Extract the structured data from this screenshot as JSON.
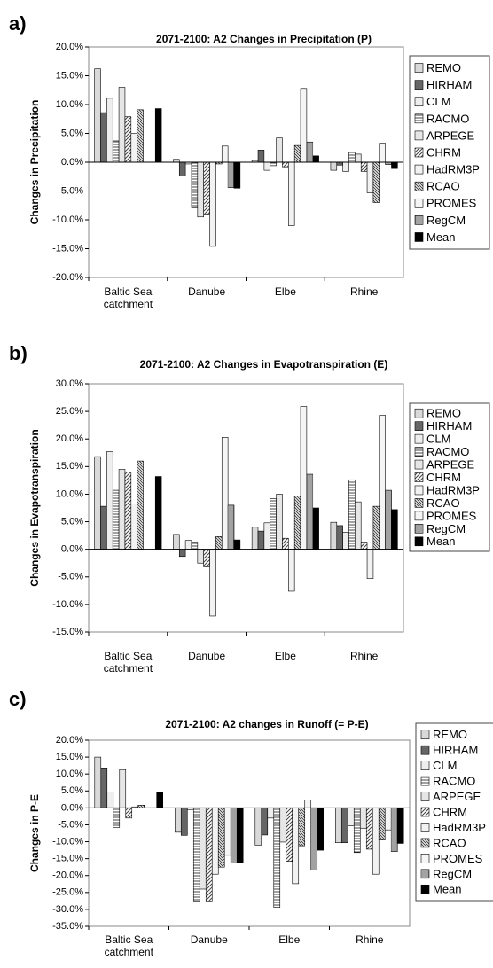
{
  "chart_data": [
    {
      "type": "bar",
      "label": "a)",
      "title": "2071-2100: A2 Changes in Precipitation (P)",
      "y_label": "Changes in Precipitation",
      "categories": [
        "Baltic Sea catchment",
        "Danube",
        "Elbe",
        "Rhine"
      ],
      "ylim": [
        -20,
        20
      ],
      "yticks": [
        {
          "value": 20,
          "label": "20.0%"
        },
        {
          "value": 15,
          "label": "15.0%"
        },
        {
          "value": 10,
          "label": "10.0%"
        },
        {
          "value": 5,
          "label": "5.0%"
        },
        {
          "value": 0,
          "label": "0.0%"
        },
        {
          "value": -5,
          "label": "-5.0%"
        },
        {
          "value": -10,
          "label": "-10.0%"
        },
        {
          "value": -15,
          "label": "-15.0%"
        },
        {
          "value": -20,
          "label": "-20.0%"
        }
      ],
      "series": [
        {
          "name": "REMO",
          "color": "#d9d9d9",
          "pattern": "solid",
          "values": [
            16.2,
            0.5,
            0.3,
            -1.4
          ]
        },
        {
          "name": "HIRHAM",
          "color": "#666666",
          "pattern": "solid",
          "values": [
            8.6,
            -2.4,
            2.1,
            -0.5
          ]
        },
        {
          "name": "CLM",
          "color": "#eeeeee",
          "pattern": "solid",
          "values": [
            11.1,
            -0.3,
            -1.4,
            -1.6
          ]
        },
        {
          "name": "RACMO",
          "color": "#444444",
          "pattern": "hlines",
          "values": [
            3.7,
            -7.9,
            -0.6,
            1.8
          ]
        },
        {
          "name": "ARPEGE",
          "color": "#e6e6e6",
          "pattern": "solid",
          "values": [
            13.0,
            -9.5,
            4.2,
            1.4
          ]
        },
        {
          "name": "CHRM",
          "color": "#444444",
          "pattern": "diag",
          "values": [
            7.9,
            -9.0,
            -0.8,
            -1.6
          ]
        },
        {
          "name": "HadRM3P",
          "color": "#f2f2f2",
          "pattern": "solid",
          "values": [
            5.0,
            -14.6,
            -11.0,
            -5.3
          ]
        },
        {
          "name": "RCAO",
          "color": "#444444",
          "pattern": "rdiag",
          "values": [
            9.1,
            -0.3,
            2.9,
            -7.0
          ]
        },
        {
          "name": "PROMES",
          "color": "#f5f5f5",
          "pattern": "solid",
          "values": [
            null,
            2.8,
            12.8,
            3.3
          ]
        },
        {
          "name": "RegCM",
          "color": "#444444",
          "pattern": "vlines",
          "values": [
            null,
            -4.4,
            3.5,
            -0.4
          ]
        },
        {
          "name": "Mean",
          "color": "#000000",
          "pattern": "solid",
          "values": [
            9.3,
            -4.5,
            1.1,
            -1.1
          ]
        }
      ]
    },
    {
      "type": "bar",
      "label": "b)",
      "title": "2071-2100: A2 Changes in Evapotranspiration (E)",
      "y_label": "Changes in Evapotranspiration",
      "categories": [
        "Baltic Sea catchment",
        "Danube",
        "Elbe",
        "Rhine"
      ],
      "ylim": [
        -15,
        30
      ],
      "yticks": [
        {
          "value": 30,
          "label": "30.0%"
        },
        {
          "value": 25,
          "label": "25.0%"
        },
        {
          "value": 20,
          "label": "20.0%"
        },
        {
          "value": 15,
          "label": "15.0%"
        },
        {
          "value": 10,
          "label": "10.0%"
        },
        {
          "value": 5,
          "label": "5.0%"
        },
        {
          "value": 0,
          "label": "0.0%"
        },
        {
          "value": -5,
          "label": "-5.0%"
        },
        {
          "value": -10,
          "label": "-10.0%"
        },
        {
          "value": -15,
          "label": "-15.0%"
        }
      ],
      "series": [
        {
          "name": "REMO",
          "color": "#d9d9d9",
          "pattern": "solid",
          "values": [
            16.8,
            2.7,
            4.0,
            4.9
          ]
        },
        {
          "name": "HIRHAM",
          "color": "#666666",
          "pattern": "solid",
          "values": [
            7.8,
            -1.3,
            3.3,
            4.3
          ]
        },
        {
          "name": "CLM",
          "color": "#eeeeee",
          "pattern": "solid",
          "values": [
            17.7,
            1.6,
            4.8,
            3.1
          ]
        },
        {
          "name": "RACMO",
          "color": "#444444",
          "pattern": "hlines",
          "values": [
            10.7,
            1.3,
            9.2,
            12.6
          ]
        },
        {
          "name": "ARPEGE",
          "color": "#e6e6e6",
          "pattern": "solid",
          "values": [
            14.5,
            -2.5,
            10.0,
            8.6
          ]
        },
        {
          "name": "CHRM",
          "color": "#444444",
          "pattern": "diag",
          "values": [
            14.0,
            -3.2,
            2.0,
            1.3
          ]
        },
        {
          "name": "HadRM3P",
          "color": "#f2f2f2",
          "pattern": "solid",
          "values": [
            8.2,
            -12.1,
            -7.6,
            -5.3
          ]
        },
        {
          "name": "RCAO",
          "color": "#444444",
          "pattern": "rdiag",
          "values": [
            16.0,
            2.3,
            9.7,
            7.8
          ]
        },
        {
          "name": "PROMES",
          "color": "#f5f5f5",
          "pattern": "solid",
          "values": [
            null,
            20.3,
            25.9,
            24.3
          ]
        },
        {
          "name": "RegCM",
          "color": "#444444",
          "pattern": "vlines",
          "values": [
            null,
            8.0,
            13.6,
            10.7
          ]
        },
        {
          "name": "Mean",
          "color": "#000000",
          "pattern": "solid",
          "values": [
            13.2,
            1.7,
            7.5,
            7.2
          ]
        }
      ]
    },
    {
      "type": "bar",
      "label": "c)",
      "title": "2071-2100: A2 changes in Runoff (= P-E)",
      "y_label": "Changes in P-E",
      "categories": [
        "Baltic Sea catchment",
        "Danube",
        "Elbe",
        "Rhine"
      ],
      "ylim": [
        -35,
        20
      ],
      "yticks": [
        {
          "value": 20,
          "label": "20.0%"
        },
        {
          "value": 15,
          "label": "15.0%"
        },
        {
          "value": 10,
          "label": "10.0%"
        },
        {
          "value": 5,
          "label": "5.0%"
        },
        {
          "value": 0,
          "label": "0.0%"
        },
        {
          "value": -5,
          "label": "-5.0%"
        },
        {
          "value": -10,
          "label": "-10.0%"
        },
        {
          "value": -15,
          "label": "-15.0%"
        },
        {
          "value": -20,
          "label": "-20.0%"
        },
        {
          "value": -25,
          "label": "-25.0%"
        },
        {
          "value": -30,
          "label": "-30.0%"
        },
        {
          "value": -35,
          "label": "-35.0%"
        }
      ],
      "series": [
        {
          "name": "REMO",
          "color": "#d9d9d9",
          "pattern": "solid",
          "values": [
            15.0,
            -7.2,
            -11.0,
            -10.3
          ]
        },
        {
          "name": "HIRHAM",
          "color": "#666666",
          "pattern": "solid",
          "values": [
            11.8,
            -8.1,
            -8.0,
            -10.3
          ]
        },
        {
          "name": "CLM",
          "color": "#eeeeee",
          "pattern": "solid",
          "values": [
            4.7,
            -0.5,
            -3.0,
            -5.3
          ]
        },
        {
          "name": "RACMO",
          "color": "#444444",
          "pattern": "hlines",
          "values": [
            -5.8,
            -27.5,
            -29.4,
            -13.2
          ]
        },
        {
          "name": "ARPEGE",
          "color": "#e6e6e6",
          "pattern": "solid",
          "values": [
            11.3,
            -24.0,
            -10.1,
            -6.0
          ]
        },
        {
          "name": "CHRM",
          "color": "#444444",
          "pattern": "diag",
          "values": [
            -3.0,
            -27.5,
            -15.8,
            -12.2
          ]
        },
        {
          "name": "HadRM3P",
          "color": "#f2f2f2",
          "pattern": "solid",
          "values": [
            0.3,
            -19.6,
            -22.4,
            -19.6
          ]
        },
        {
          "name": "RCAO",
          "color": "#444444",
          "pattern": "rdiag",
          "values": [
            0.8,
            -17.5,
            -11.2,
            -9.5
          ]
        },
        {
          "name": "PROMES",
          "color": "#f5f5f5",
          "pattern": "solid",
          "values": [
            null,
            -14.0,
            2.3,
            -6.5
          ]
        },
        {
          "name": "RegCM",
          "color": "#444444",
          "pattern": "vlines",
          "values": [
            null,
            -16.3,
            -18.4,
            -12.9
          ]
        },
        {
          "name": "Mean",
          "color": "#000000",
          "pattern": "solid",
          "values": [
            4.5,
            -16.3,
            -12.5,
            -10.5
          ]
        }
      ]
    }
  ]
}
